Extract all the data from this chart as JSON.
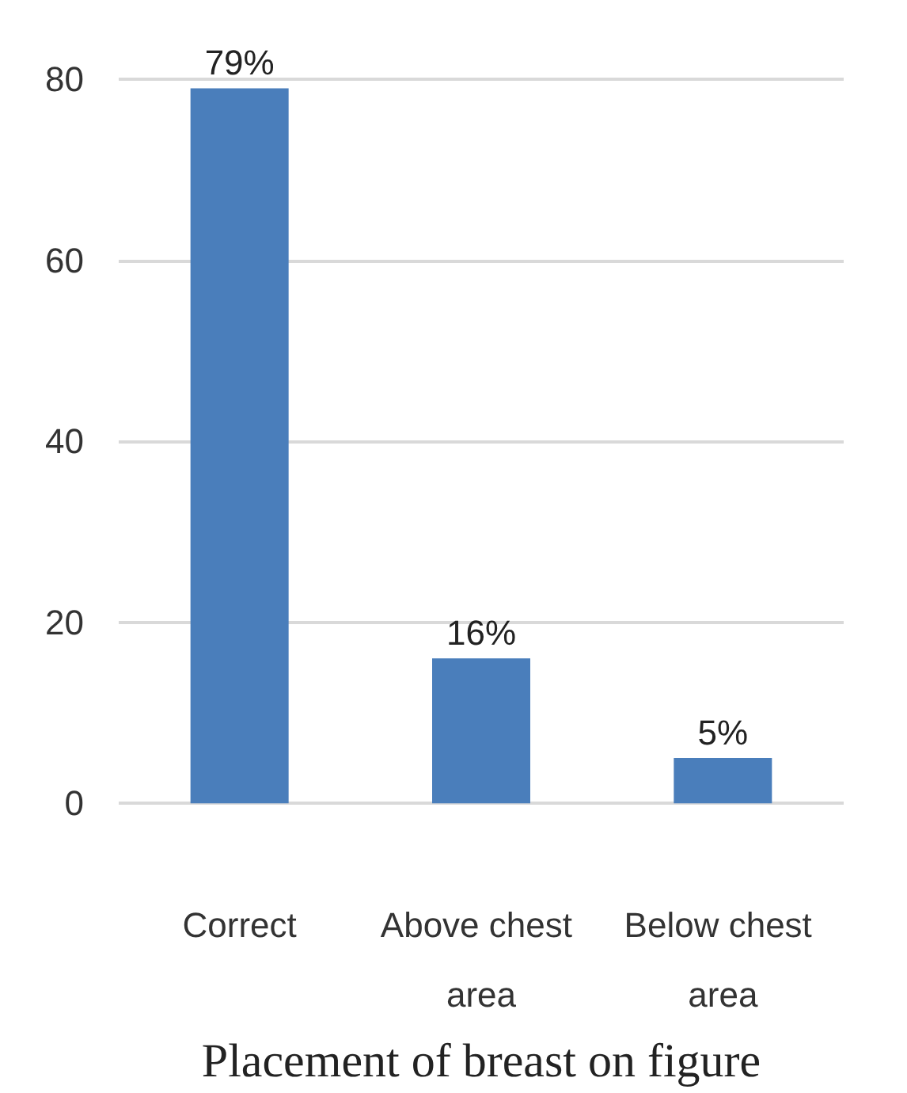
{
  "chart_data": {
    "type": "bar",
    "xlabel": "Placement of breast on figure",
    "categories": [
      "Correct",
      "Above chest area",
      "Below chest area"
    ],
    "values": [
      79,
      16,
      5
    ],
    "value_labels": [
      "79%",
      "16%",
      "5%"
    ],
    "color": "#4a7ebb",
    "ylim": [
      0,
      80
    ],
    "yticks": [
      0,
      20,
      40,
      60,
      80
    ],
    "grid": "y"
  }
}
